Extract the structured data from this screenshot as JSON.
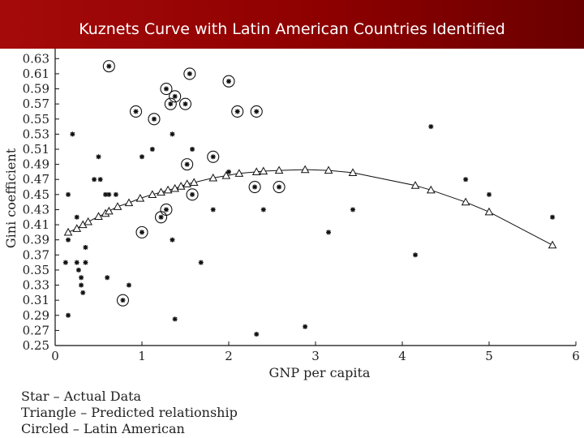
{
  "header": {
    "title": "Kuznets Curve with Latin American Countries Identified"
  },
  "legend": [
    "Star – Actual Data",
    "Triangle – Predicted relationship",
    "Circled – Latin American"
  ],
  "colors": {
    "header": "#8e0000",
    "marks": "#111111"
  },
  "chart_data": {
    "type": "scatter",
    "title": "",
    "xlabel": "GNP per capita",
    "ylabel": "Gini coefficient",
    "xlim": [
      0,
      6
    ],
    "ylim": [
      0.25,
      0.64
    ],
    "grid": false,
    "x_ticks": [
      "0",
      "1",
      "2",
      "3",
      "4",
      "5",
      "6"
    ],
    "y_ticks": [
      "0.63",
      "0.61",
      "0.59",
      "0.57",
      "0.55",
      "0.53",
      "0.51",
      "0.49",
      "0.47",
      "0.45",
      "0.43",
      "0.41",
      "0.39",
      "0.37",
      "0.35",
      "0.33",
      "0.31",
      "0.29",
      "0.27",
      "0.25"
    ],
    "series": [
      {
        "marker": "star",
        "points": [
          {
            "x": 0.62,
            "y": 0.62,
            "circled": true
          },
          {
            "x": 1.55,
            "y": 0.61,
            "circled": true
          },
          {
            "x": 2.0,
            "y": 0.6,
            "circled": true
          },
          {
            "x": 1.28,
            "y": 0.59,
            "circled": true
          },
          {
            "x": 1.38,
            "y": 0.58,
            "circled": true
          },
          {
            "x": 1.33,
            "y": 0.57,
            "circled": true
          },
          {
            "x": 1.5,
            "y": 0.57,
            "circled": true
          },
          {
            "x": 0.93,
            "y": 0.56,
            "circled": true
          },
          {
            "x": 2.1,
            "y": 0.56,
            "circled": true
          },
          {
            "x": 2.32,
            "y": 0.56,
            "circled": true
          },
          {
            "x": 1.14,
            "y": 0.55,
            "circled": true
          },
          {
            "x": 1.82,
            "y": 0.5,
            "circled": true
          },
          {
            "x": 1.52,
            "y": 0.49,
            "circled": true
          },
          {
            "x": 2.3,
            "y": 0.46,
            "circled": true
          },
          {
            "x": 2.58,
            "y": 0.46,
            "circled": true
          },
          {
            "x": 1.58,
            "y": 0.45,
            "circled": true
          },
          {
            "x": 1.28,
            "y": 0.43,
            "circled": true
          },
          {
            "x": 1.22,
            "y": 0.42,
            "circled": true
          },
          {
            "x": 1.0,
            "y": 0.4,
            "circled": true
          },
          {
            "x": 0.78,
            "y": 0.31,
            "circled": true
          },
          {
            "x": 4.33,
            "y": 0.54,
            "circled": false
          },
          {
            "x": 0.2,
            "y": 0.53,
            "circled": false
          },
          {
            "x": 1.35,
            "y": 0.53,
            "circled": false
          },
          {
            "x": 1.58,
            "y": 0.51,
            "circled": false
          },
          {
            "x": 1.12,
            "y": 0.51,
            "circled": false
          },
          {
            "x": 0.5,
            "y": 0.5,
            "circled": false
          },
          {
            "x": 1.0,
            "y": 0.5,
            "circled": false
          },
          {
            "x": 2.0,
            "y": 0.48,
            "circled": false
          },
          {
            "x": 0.45,
            "y": 0.47,
            "circled": false
          },
          {
            "x": 0.52,
            "y": 0.47,
            "circled": false
          },
          {
            "x": 4.73,
            "y": 0.47,
            "circled": false
          },
          {
            "x": 0.58,
            "y": 0.45,
            "circled": false
          },
          {
            "x": 0.62,
            "y": 0.45,
            "circled": false
          },
          {
            "x": 0.15,
            "y": 0.45,
            "circled": false
          },
          {
            "x": 0.7,
            "y": 0.45,
            "circled": false
          },
          {
            "x": 5.0,
            "y": 0.45,
            "circled": false
          },
          {
            "x": 1.82,
            "y": 0.43,
            "circled": false
          },
          {
            "x": 2.4,
            "y": 0.43,
            "circled": false
          },
          {
            "x": 3.43,
            "y": 0.43,
            "circled": false
          },
          {
            "x": 0.25,
            "y": 0.42,
            "circled": false
          },
          {
            "x": 5.73,
            "y": 0.42,
            "circled": false
          },
          {
            "x": 3.15,
            "y": 0.4,
            "circled": false
          },
          {
            "x": 0.15,
            "y": 0.39,
            "circled": false
          },
          {
            "x": 1.35,
            "y": 0.39,
            "circled": false
          },
          {
            "x": 0.35,
            "y": 0.38,
            "circled": false
          },
          {
            "x": 4.15,
            "y": 0.37,
            "circled": false
          },
          {
            "x": 0.12,
            "y": 0.36,
            "circled": false
          },
          {
            "x": 0.25,
            "y": 0.36,
            "circled": false
          },
          {
            "x": 0.35,
            "y": 0.36,
            "circled": false
          },
          {
            "x": 1.68,
            "y": 0.36,
            "circled": false
          },
          {
            "x": 0.27,
            "y": 0.35,
            "circled": false
          },
          {
            "x": 0.3,
            "y": 0.34,
            "circled": false
          },
          {
            "x": 0.6,
            "y": 0.34,
            "circled": false
          },
          {
            "x": 0.3,
            "y": 0.33,
            "circled": false
          },
          {
            "x": 0.85,
            "y": 0.33,
            "circled": false
          },
          {
            "x": 0.32,
            "y": 0.32,
            "circled": false
          },
          {
            "x": 0.15,
            "y": 0.29,
            "circled": false
          },
          {
            "x": 1.38,
            "y": 0.285,
            "circled": false
          },
          {
            "x": 2.88,
            "y": 0.275,
            "circled": false
          },
          {
            "x": 2.32,
            "y": 0.265,
            "circled": false
          }
        ]
      },
      {
        "marker": "triangle",
        "curve": true,
        "points": [
          {
            "x": 0.15,
            "y": 0.4
          },
          {
            "x": 0.25,
            "y": 0.405
          },
          {
            "x": 0.32,
            "y": 0.41
          },
          {
            "x": 0.38,
            "y": 0.414
          },
          {
            "x": 0.5,
            "y": 0.421
          },
          {
            "x": 0.58,
            "y": 0.425
          },
          {
            "x": 0.62,
            "y": 0.428
          },
          {
            "x": 0.72,
            "y": 0.434
          },
          {
            "x": 0.85,
            "y": 0.439
          },
          {
            "x": 0.98,
            "y": 0.445
          },
          {
            "x": 1.12,
            "y": 0.45
          },
          {
            "x": 1.22,
            "y": 0.453
          },
          {
            "x": 1.3,
            "y": 0.456
          },
          {
            "x": 1.38,
            "y": 0.458
          },
          {
            "x": 1.45,
            "y": 0.461
          },
          {
            "x": 1.52,
            "y": 0.464
          },
          {
            "x": 1.6,
            "y": 0.466
          },
          {
            "x": 1.82,
            "y": 0.472
          },
          {
            "x": 1.97,
            "y": 0.475
          },
          {
            "x": 2.12,
            "y": 0.478
          },
          {
            "x": 2.32,
            "y": 0.48
          },
          {
            "x": 2.4,
            "y": 0.481
          },
          {
            "x": 2.58,
            "y": 0.482
          },
          {
            "x": 2.88,
            "y": 0.483
          },
          {
            "x": 3.15,
            "y": 0.482
          },
          {
            "x": 3.43,
            "y": 0.479
          },
          {
            "x": 4.15,
            "y": 0.462
          },
          {
            "x": 4.33,
            "y": 0.456
          },
          {
            "x": 4.73,
            "y": 0.44
          },
          {
            "x": 5.0,
            "y": 0.427
          },
          {
            "x": 5.73,
            "y": 0.383
          }
        ]
      }
    ]
  }
}
